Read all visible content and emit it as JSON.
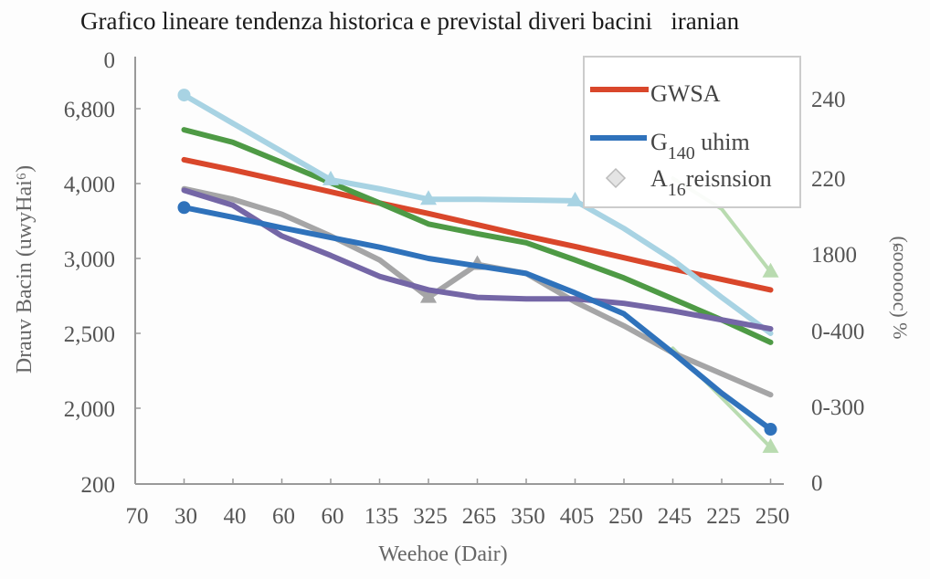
{
  "chart_data": {
    "type": "line",
    "title": "Grafico lineare tendenza historica e previstal diveri bacini   iranian",
    "xlabel": "Weehoe (Dair)",
    "ylabel": "Drauv Bacin (uwyHai⁶)",
    "ylabel_right": "(ɕoooooc) %",
    "categories": [
      "70",
      "30",
      "40",
      "60",
      "60",
      "135",
      "325",
      "265",
      "350",
      "405",
      "250",
      "245",
      "225",
      "250"
    ],
    "y_ticks_left": [
      "0",
      "6,800",
      "4,000",
      "3,000",
      "2,500",
      "2,000",
      "200"
    ],
    "y_tick_values_left": [
      6800,
      4000,
      3000,
      2500,
      2000,
      200
    ],
    "y_ticks_right": [
      "240",
      "220",
      "1800",
      "0-400",
      "0-300",
      "0"
    ],
    "grid": false,
    "legend_position": "top-right",
    "legend": [
      {
        "main": "GWSA",
        "sub": "",
        "rest": "",
        "color": "#d9472b",
        "symbol": "line"
      },
      {
        "main": "G",
        "sub": "140",
        "rest": " uhim",
        "color": "#2f72bb",
        "symbol": "line"
      },
      {
        "main": "A",
        "sub": "16",
        "rest": "reisnsion",
        "color": "#c9c9c9",
        "symbol": "diamond"
      }
    ],
    "series": [
      {
        "name": "GWSA",
        "color": "#d9472b",
        "values": [
          null,
          4890,
          4510,
          4100,
          3890,
          3740,
          3600,
          3450,
          3300,
          3160,
          3010,
          2930,
          2860,
          2790
        ],
        "markers": []
      },
      {
        "color": "#4e9a45",
        "values": [
          null,
          6010,
          5540,
          4790,
          4030,
          3740,
          3460,
          3330,
          3210,
          2990,
          2870,
          2730,
          2590,
          2440
        ],
        "markers": []
      },
      {
        "color": "#a8d3e3",
        "values": [
          null,
          7310,
          6250,
          5200,
          4140,
          3930,
          3790,
          3790,
          3780,
          3770,
          3400,
          2990,
          2740,
          2500
        ],
        "markers": [
          {
            "i": 1,
            "shape": "circle"
          },
          {
            "i": 4,
            "shape": "triangle"
          },
          {
            "i": 6,
            "shape": "triangle"
          },
          {
            "i": 9,
            "shape": "triangle"
          }
        ]
      },
      {
        "color": "#b9dbb0",
        "values": [
          null,
          null,
          null,
          null,
          null,
          null,
          null,
          null,
          null,
          null,
          null,
          4200,
          3660,
          2910
        ],
        "markers": [
          {
            "i": 13,
            "shape": "triangle"
          }
        ]
      },
      {
        "color": "#b9dbb0",
        "values": [
          null,
          null,
          null,
          null,
          null,
          null,
          null,
          null,
          null,
          null,
          null,
          2400,
          2070,
          1070
        ],
        "markers": [
          {
            "i": 13,
            "shape": "triangle"
          }
        ]
      },
      {
        "color": "#a5a5a6",
        "values": [
          null,
          3930,
          3790,
          3590,
          3300,
          2990,
          2740,
          2960,
          2900,
          2710,
          2550,
          2370,
          2230,
          2090
        ],
        "markers": [
          {
            "i": 6,
            "shape": "triangle"
          },
          {
            "i": 7,
            "shape": "triangle"
          }
        ]
      },
      {
        "color": "#7466a6",
        "values": [
          null,
          3910,
          3710,
          3300,
          3040,
          2880,
          2790,
          2740,
          2730,
          2730,
          2700,
          2650,
          2590,
          2530
        ],
        "markers": []
      },
      {
        "name": "G140 uhim",
        "color": "#2f72bb",
        "values": [
          null,
          3680,
          3550,
          3410,
          3280,
          3150,
          3000,
          2950,
          2900,
          2770,
          2630,
          2370,
          2100,
          1500
        ],
        "markers": [
          {
            "i": 1,
            "shape": "circle"
          },
          {
            "i": 13,
            "shape": "circle"
          }
        ]
      }
    ]
  }
}
